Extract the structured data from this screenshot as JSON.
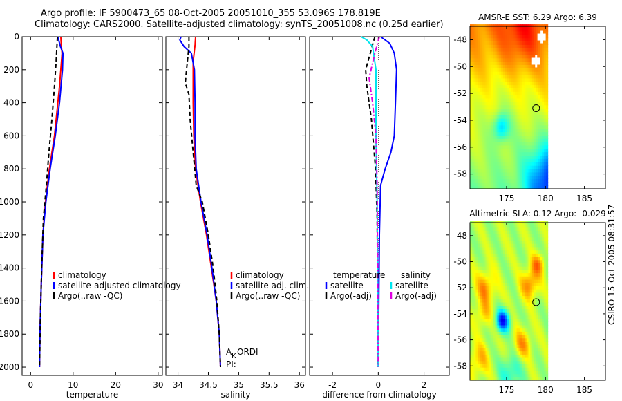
{
  "title": {
    "line1": "Argo profile: IF 5900473_65 08-Oct-2005 20051010_355 53.096S 178.819E",
    "line2": "Climatology: CARS2000. Satellite-adjusted climatology: synTS_20051008.nc (0.25d earlier)"
  },
  "side_label": "CSIRO 15-Oct-2005 08:31:57",
  "colors": {
    "red": "#ff0000",
    "blue": "#0000ff",
    "black": "#000000",
    "cyan": "#00e5ee",
    "magenta": "#e000e0"
  },
  "chart_data": [
    {
      "type": "line",
      "id": "temperature",
      "xlabel": "temperature",
      "ylabel": "",
      "xlim": [
        -2,
        31
      ],
      "ylim": [
        2050,
        0
      ],
      "xticks": [
        "0",
        "10",
        "20",
        "30"
      ],
      "yticks": [
        "0",
        "200",
        "400",
        "600",
        "800",
        "1000",
        "1200",
        "1400",
        "1600",
        "1800",
        "2000"
      ],
      "series": [
        {
          "name": "climatology",
          "color": "red",
          "style": "solid",
          "points": [
            [
              7.1,
              0
            ],
            [
              7.2,
              50
            ],
            [
              7.4,
              100
            ],
            [
              6.8,
              300
            ],
            [
              5.6,
              600
            ],
            [
              4.4,
              800
            ],
            [
              3.5,
              1000
            ],
            [
              2.9,
              1200
            ],
            [
              2.5,
              1500
            ],
            [
              2.2,
              1800
            ],
            [
              2.1,
              2000
            ]
          ]
        },
        {
          "name": "satellite-adjusted climatology",
          "color": "blue",
          "style": "solid",
          "points": [
            [
              6.4,
              0
            ],
            [
              6.6,
              20
            ],
            [
              7.0,
              60
            ],
            [
              7.6,
              100
            ],
            [
              7.5,
              200
            ],
            [
              6.8,
              400
            ],
            [
              5.8,
              600
            ],
            [
              4.6,
              800
            ],
            [
              3.6,
              1000
            ],
            [
              2.9,
              1200
            ],
            [
              2.5,
              1500
            ],
            [
              2.2,
              1800
            ],
            [
              2.1,
              2000
            ]
          ]
        },
        {
          "name": "Argo(..raw -QC)",
          "color": "black",
          "style": "dashed",
          "points": [
            [
              6.3,
              0
            ],
            [
              6.0,
              150
            ],
            [
              5.6,
              300
            ],
            [
              5.0,
              500
            ],
            [
              4.3,
              700
            ],
            [
              3.7,
              900
            ],
            [
              3.0,
              1100
            ],
            [
              2.6,
              1400
            ],
            [
              2.3,
              1700
            ],
            [
              2.1,
              2000
            ]
          ]
        }
      ],
      "legend": [
        "climatology",
        "satellite-adjusted climatology",
        "Argo(..raw -QC)"
      ]
    },
    {
      "type": "line",
      "id": "salinity",
      "xlabel": "salinity",
      "xlim": [
        33.8,
        36.1
      ],
      "ylim": [
        2050,
        0
      ],
      "xticks": [
        "34",
        "34.5",
        "35",
        "35.5",
        "36"
      ],
      "series": [
        {
          "name": "climatology",
          "color": "red",
          "style": "solid",
          "points": [
            [
              34.29,
              0
            ],
            [
              34.28,
              50
            ],
            [
              34.25,
              150
            ],
            [
              34.25,
              400
            ],
            [
              34.26,
              600
            ],
            [
              34.29,
              800
            ],
            [
              34.37,
              1000
            ],
            [
              34.47,
              1200
            ],
            [
              34.55,
              1400
            ],
            [
              34.63,
              1600
            ],
            [
              34.68,
              1800
            ],
            [
              34.7,
              2000
            ]
          ]
        },
        {
          "name": "satellite adj. clim.",
          "color": "blue",
          "style": "solid",
          "points": [
            [
              34.05,
              0
            ],
            [
              34.03,
              20
            ],
            [
              34.1,
              60
            ],
            [
              34.22,
              100
            ],
            [
              34.27,
              200
            ],
            [
              34.28,
              400
            ],
            [
              34.28,
              600
            ],
            [
              34.3,
              800
            ],
            [
              34.38,
              1000
            ],
            [
              34.48,
              1200
            ],
            [
              34.56,
              1400
            ],
            [
              34.63,
              1600
            ],
            [
              34.68,
              1800
            ],
            [
              34.7,
              2000
            ]
          ]
        },
        {
          "name": "Argo(..raw -QC)",
          "color": "black",
          "style": "dashed",
          "points": [
            [
              34.18,
              0
            ],
            [
              34.18,
              60
            ],
            [
              34.14,
              200
            ],
            [
              34.12,
              280
            ],
            [
              34.18,
              350
            ],
            [
              34.2,
              500
            ],
            [
              34.25,
              700
            ],
            [
              34.3,
              900
            ],
            [
              34.4,
              1000
            ],
            [
              34.5,
              1200
            ],
            [
              34.58,
              1400
            ],
            [
              34.64,
              1600
            ],
            [
              34.68,
              1800
            ],
            [
              34.7,
              2000
            ]
          ]
        }
      ],
      "legend": [
        "climatology",
        "satellite adj. clim.",
        "Argo(..raw -QC)"
      ],
      "annotations": [
        "A",
        "K",
        "ORDI",
        "PI:"
      ]
    },
    {
      "type": "line",
      "id": "difference",
      "xlabel": "difference from climatology",
      "xlim": [
        -3,
        3.1
      ],
      "ylim": [
        2050,
        0
      ],
      "xticks": [
        "-2",
        "0",
        "2"
      ],
      "series": [
        {
          "name": "temperature satellite",
          "color": "blue",
          "style": "solid",
          "points": [
            [
              0.1,
              0
            ],
            [
              0.5,
              40
            ],
            [
              0.7,
              100
            ],
            [
              0.8,
              200
            ],
            [
              0.75,
              400
            ],
            [
              0.7,
              600
            ],
            [
              0.55,
              700
            ],
            [
              0.3,
              800
            ],
            [
              0.1,
              900
            ],
            [
              0.05,
              1200
            ],
            [
              0.0,
              2000
            ]
          ]
        },
        {
          "name": "temperature Argo(-adj)",
          "color": "black",
          "style": "dashed",
          "points": [
            [
              -0.15,
              0
            ],
            [
              -0.35,
              100
            ],
            [
              -0.55,
              200
            ],
            [
              -0.5,
              300
            ],
            [
              -0.3,
              500
            ],
            [
              -0.12,
              800
            ],
            [
              -0.05,
              1100
            ],
            [
              0.0,
              2000
            ]
          ]
        },
        {
          "name": "salinity satellite",
          "color": "cyan",
          "style": "solid",
          "points": [
            [
              -0.75,
              0
            ],
            [
              -0.5,
              20
            ],
            [
              -0.25,
              60
            ],
            [
              -0.1,
              200
            ],
            [
              -0.1,
              600
            ],
            [
              -0.05,
              1000
            ],
            [
              -0.03,
              1400
            ],
            [
              0.0,
              2000
            ]
          ]
        },
        {
          "name": "salinity Argo(-adj)",
          "color": "magenta",
          "style": "dashdot",
          "points": [
            [
              0.05,
              0
            ],
            [
              -0.15,
              100
            ],
            [
              -0.4,
              250
            ],
            [
              -0.25,
              400
            ],
            [
              -0.1,
              600
            ],
            [
              -0.05,
              900
            ],
            [
              0.0,
              2000
            ]
          ]
        }
      ],
      "legend_groups": [
        {
          "header": "temperature",
          "entries": [
            "satellite",
            "Argo(-adj)"
          ]
        },
        {
          "header": "salinity",
          "entries": [
            "satellite",
            "Argo(-adj)"
          ]
        }
      ]
    },
    {
      "type": "heatmap",
      "id": "sst-map",
      "title": "AMSR-E SST: 6.29 Argo: 6.39",
      "xlim": [
        170.3,
        187.7
      ],
      "ylim": [
        -59.1,
        -47.0
      ],
      "xticks": [
        "175",
        "180",
        "185"
      ],
      "yticks": [
        "-48",
        "-50",
        "-52",
        "-54",
        "-56",
        "-58"
      ],
      "data_extent_lon": [
        170.3,
        180.3
      ],
      "argo_position": [
        178.8,
        -53.1
      ],
      "cloud_blocks": [
        [
          179.5,
          -47.8
        ],
        [
          178.8,
          -49.6
        ]
      ]
    },
    {
      "type": "heatmap",
      "id": "sla-map",
      "title": "Altimetric SLA: 0.12 Argo: -0.029",
      "xlim": [
        170.3,
        187.7
      ],
      "ylim": [
        -59.1,
        -47.0
      ],
      "xticks": [
        "175",
        "180",
        "185"
      ],
      "yticks": [
        "-48",
        "-50",
        "-52",
        "-54",
        "-56",
        "-58"
      ],
      "data_extent_lon": [
        170.3,
        180.3
      ],
      "argo_position": [
        178.8,
        -53.1
      ]
    }
  ]
}
